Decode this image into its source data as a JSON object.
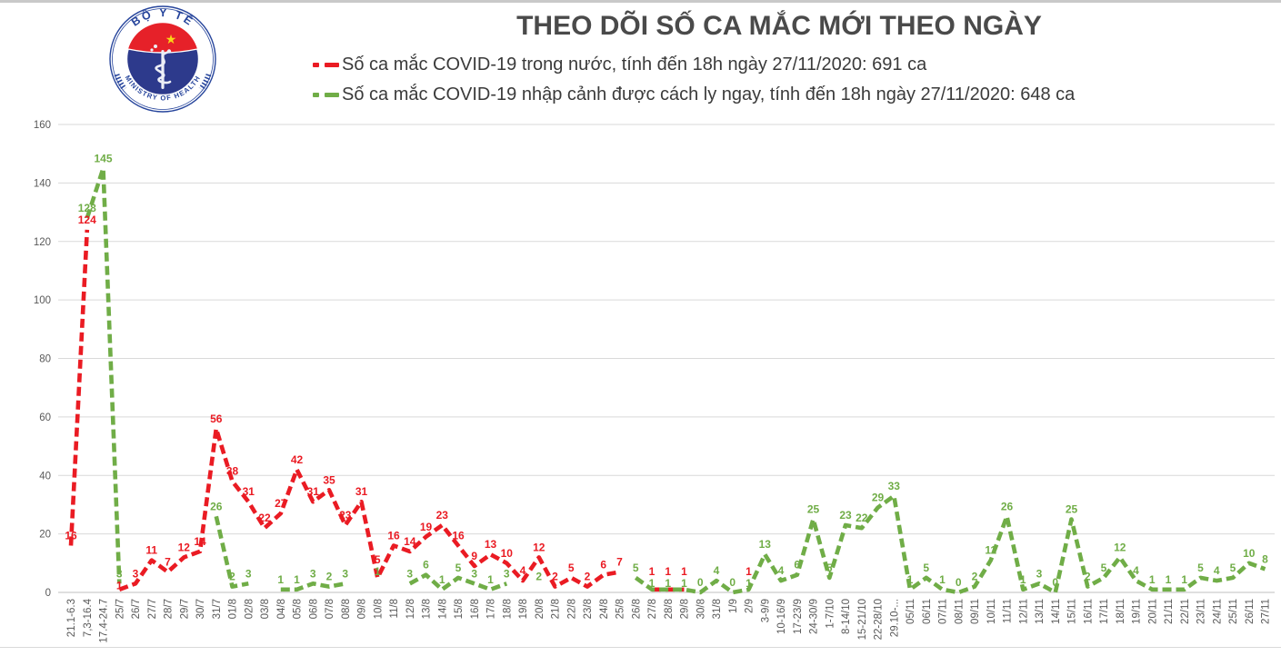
{
  "header": {
    "title": "THEO DÕI SỐ CA MẮC MỚI THEO NGÀY",
    "logo": {
      "top_text": "BỘ Y TẾ",
      "bottom_text": "MINISTRY OF HEALTH",
      "colors": {
        "ring_blue": "#27459c",
        "disc_blue": "#2d3a8c",
        "cap_red": "#e62129",
        "star_yellow": "#f9d616",
        "staff_white": "#eceef6"
      }
    },
    "legend": [
      {
        "id": "domestic",
        "label": "Số ca mắc COVID-19 trong nước, tính đến 18h ngày 27/11/2020: 691 ca",
        "color": "#ea1b23"
      },
      {
        "id": "imported",
        "label": "Số ca mắc COVID-19 nhập cảnh được cách ly ngay, tính đến 18h ngày 27/11/2020: 648 ca",
        "color": "#70ad47"
      }
    ]
  },
  "colors": {
    "title_text": "#4a4a4a",
    "axis_text": "#595959",
    "gridline": "#d9d9d9",
    "axis_line": "#bfbfbf"
  },
  "chart_data": {
    "type": "line",
    "title": "THEO DÕI SỐ CA MẮC MỚI THEO NGÀY",
    "xlabel": "",
    "ylabel": "",
    "ylim": [
      0,
      160
    ],
    "yticks": [
      0,
      20,
      40,
      60,
      80,
      100,
      120,
      140,
      160
    ],
    "grid": true,
    "legend_position": "top",
    "line_style": "dashed",
    "categories": [
      "21.1-6.3",
      "7,3-16.4",
      "17.4-24.7",
      "25/7",
      "26/7",
      "27/7",
      "28/7",
      "29/7",
      "30/7",
      "31/7",
      "01/8",
      "02/8",
      "03/8",
      "04/8",
      "05/8",
      "06/8",
      "07/8",
      "08/8",
      "09/8",
      "10/8",
      "11/8",
      "12/8",
      "13/8",
      "14/8",
      "15/8",
      "16/8",
      "17/8",
      "18/8",
      "19/8",
      "20/8",
      "21/8",
      "22/8",
      "23/8",
      "24/8",
      "25/8",
      "26/8",
      "27/8",
      "28/8",
      "29/8",
      "30/8",
      "31/8",
      "1/9",
      "2/9",
      "3-9/9",
      "10-16/9",
      "17-23/9",
      "24-30/9",
      "1-7/10",
      "8-14/10",
      "15-21/10",
      "22-28/10",
      "29.10-...",
      "05/11",
      "06/11",
      "07/11",
      "08/11",
      "09/11",
      "10/11",
      "11/11",
      "12/11",
      "13/11",
      "14/11",
      "15/11",
      "16/11",
      "17/11",
      "18/11",
      "19/11",
      "20/11",
      "21/11",
      "22/11",
      "23/11",
      "24/11",
      "25/11",
      "26/11",
      "27/11"
    ],
    "series": [
      {
        "name": "Số ca mắc COVID-19 trong nước",
        "color": "#ea1b23",
        "values": [
          16,
          124,
          null,
          1,
          3,
          11,
          7,
          12,
          14,
          56,
          38,
          31,
          22,
          27,
          42,
          31,
          35,
          23,
          31,
          5,
          16,
          14,
          19,
          23,
          16,
          9,
          13,
          10,
          4,
          12,
          2,
          5,
          2,
          6,
          7,
          null,
          1,
          1,
          1,
          null,
          null,
          null,
          1,
          null,
          null,
          null,
          null,
          null,
          null,
          null,
          null,
          null,
          null,
          null,
          null,
          null,
          null,
          null,
          null,
          null,
          null,
          null,
          null,
          null,
          null,
          null,
          null,
          null,
          null,
          null,
          null,
          null,
          null,
          null,
          null
        ]
      },
      {
        "name": "Số ca mắc COVID-19 nhập cảnh được cách ly ngay",
        "color": "#70ad47",
        "values": [
          null,
          128,
          145,
          3,
          null,
          null,
          null,
          null,
          null,
          26,
          2,
          3,
          null,
          1,
          1,
          3,
          2,
          3,
          null,
          1,
          null,
          3,
          6,
          1,
          5,
          3,
          1,
          3,
          null,
          2,
          null,
          null,
          null,
          null,
          null,
          5,
          1,
          1,
          1,
          0,
          4,
          0,
          1,
          13,
          4,
          6,
          25,
          5,
          23,
          22,
          29,
          33,
          1,
          5,
          1,
          0,
          2,
          11,
          26,
          1,
          3,
          0,
          25,
          2,
          5,
          12,
          4,
          1,
          1,
          1,
          5,
          4,
          5,
          10,
          8
        ]
      }
    ]
  }
}
